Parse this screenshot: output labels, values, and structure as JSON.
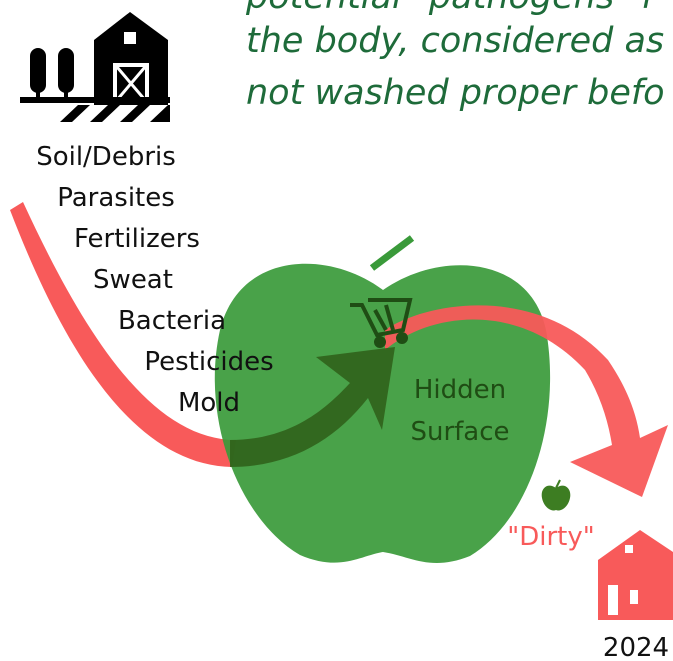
{
  "intro": {
    "lines": [
      "potential \"pathogens\" f",
      "the body, considered as",
      "not washed proper befo"
    ]
  },
  "source": {
    "label": "Soil/Debris"
  },
  "contaminants": [
    "Parasites",
    "Fertilizers",
    "Sweat",
    "Bacteria",
    "Pesticides",
    "Mold"
  ],
  "apple": {
    "lines": [
      "Hidden",
      "Surface"
    ]
  },
  "result": {
    "label": "\"Dirty\""
  },
  "destination": {
    "label": "2024"
  }
}
